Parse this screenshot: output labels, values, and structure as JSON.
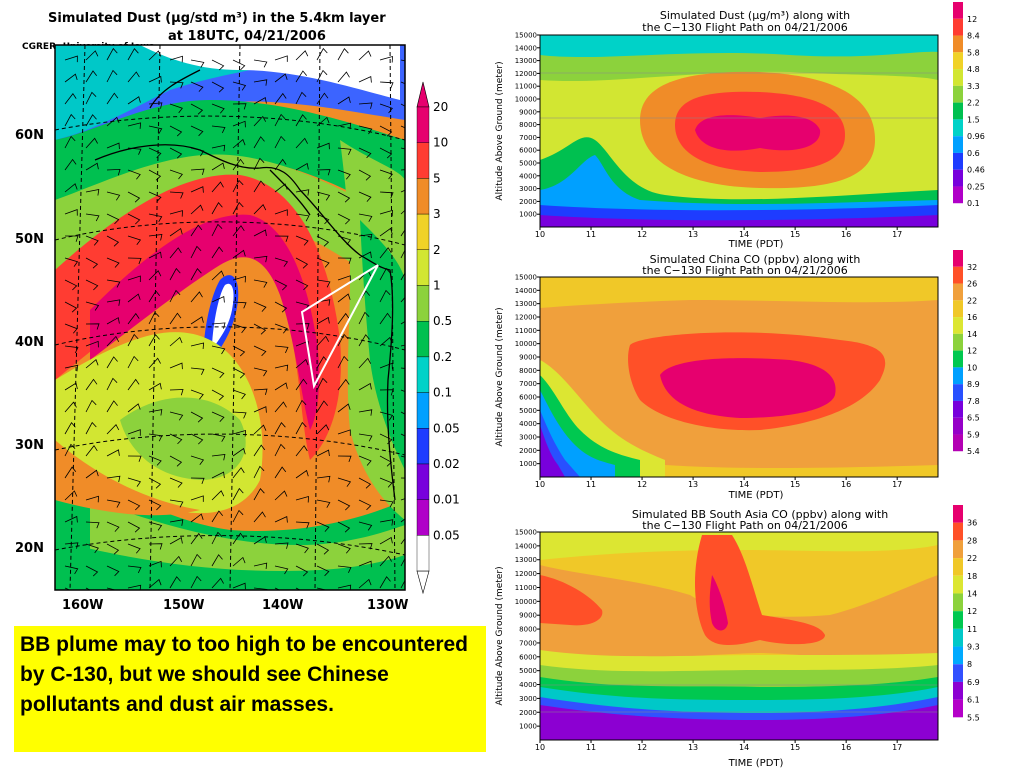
{
  "colors": {
    "dust": [
      "#e0e0e0",
      "#b000c8",
      "#7800dc",
      "#1e3cff",
      "#00a0ff",
      "#00d2c8",
      "#00c050",
      "#8cd23c",
      "#d2e632",
      "#f0d228",
      "#f08c28",
      "#ff3c32",
      "#e6006e"
    ],
    "chinaco": [
      "#7800dc",
      "#2850ff",
      "#00a0ff",
      "#00c850",
      "#8cd23c",
      "#dce632",
      "#f0c828",
      "#f0a03c",
      "#ff5028",
      "#e6006e"
    ],
    "bbco": [
      "#8c00d2",
      "#3250ff",
      "#00aaff",
      "#00c8c8",
      "#00c850",
      "#8cd23c",
      "#dce632",
      "#f0c828",
      "#f0a03c",
      "#ff5028",
      "#e6006e"
    ]
  },
  "caption": {
    "text": "BB plume may to too high to be encountered by C-130, but we should see Chinese pollutants and dust air masses."
  },
  "chart_data": [
    {
      "type": "heatmap",
      "title": "Simulated Dust (μg/std m³) in the 5.4km layer",
      "subtitle": "at 18UTC, 04/21/2006",
      "credit": "CGRER, University of Iowa",
      "y_tick_labels": [
        "60N",
        "50N",
        "40N",
        "30N",
        "20N"
      ],
      "x_tick_labels": [
        "160W",
        "150W",
        "140W",
        "130W"
      ],
      "colorbar_labels": [
        "20",
        "10",
        "5",
        "3",
        "2",
        "1",
        "0.5",
        "0.2",
        "0.1",
        "0.05",
        "0.02",
        "0.01",
        "0.05"
      ]
    },
    {
      "type": "heatmap",
      "title": "Simulated Dust (μg/m³) along with",
      "subtitle": "the C−130 Flight Path on 04/21/2006",
      "xlabel": "TIME (PDT)",
      "ylabel": "Altitude Above Ground (meter)",
      "xlim": [
        10,
        17.8
      ],
      "ylim": [
        0,
        15000
      ],
      "x_ticks": [
        "10",
        "11",
        "12",
        "13",
        "14",
        "15",
        "16",
        "17"
      ],
      "y_ticks": [
        "1000",
        "2000",
        "3000",
        "4000",
        "5000",
        "6000",
        "7000",
        "8000",
        "9000",
        "10000",
        "11000",
        "12000",
        "13000",
        "14000",
        "15000"
      ],
      "colorbar_labels": [
        "12",
        "8.4",
        "5.8",
        "4.8",
        "3.3",
        "2.2",
        "1.5",
        "0.96",
        "0.6",
        "0.46",
        "0.25",
        "0.1"
      ]
    },
    {
      "type": "heatmap",
      "title": "Simulated China CO (ppbv) along with",
      "subtitle": "the C−130 Flight Path on 04/21/2006",
      "xlabel": "TIME (PDT)",
      "ylabel": "Altitude Above Ground (meter)",
      "xlim": [
        10,
        17.8
      ],
      "ylim": [
        0,
        15000
      ],
      "x_ticks": [
        "10",
        "11",
        "12",
        "13",
        "14",
        "15",
        "16",
        "17"
      ],
      "y_ticks": [
        "1000",
        "2000",
        "3000",
        "4000",
        "5000",
        "6000",
        "7000",
        "8000",
        "9000",
        "10000",
        "11000",
        "12000",
        "13000",
        "14000",
        "15000"
      ],
      "colorbar_labels": [
        "32",
        "26",
        "22",
        "16",
        "14",
        "12",
        "10",
        "8.9",
        "7.8",
        "6.5",
        "5.9",
        "5.4"
      ]
    },
    {
      "type": "heatmap",
      "title": "Simulated BB South Asia CO (ppbv) along with",
      "subtitle": "the C−130 Flight Path on 04/21/2006",
      "xlabel": "TIME (PDT)",
      "ylabel": "Altitude Above Ground (meter)",
      "xlim": [
        10,
        17.8
      ],
      "ylim": [
        0,
        15000
      ],
      "x_ticks": [
        "10",
        "11",
        "12",
        "13",
        "14",
        "15",
        "16",
        "17"
      ],
      "y_ticks": [
        "1000",
        "2000",
        "3000",
        "4000",
        "5000",
        "6000",
        "7000",
        "8000",
        "9000",
        "10000",
        "11000",
        "12000",
        "13000",
        "14000",
        "15000"
      ],
      "colorbar_labels": [
        "36",
        "28",
        "22",
        "18",
        "14",
        "12",
        "11",
        "9.3",
        "8",
        "6.9",
        "6.1",
        "5.5"
      ]
    }
  ]
}
